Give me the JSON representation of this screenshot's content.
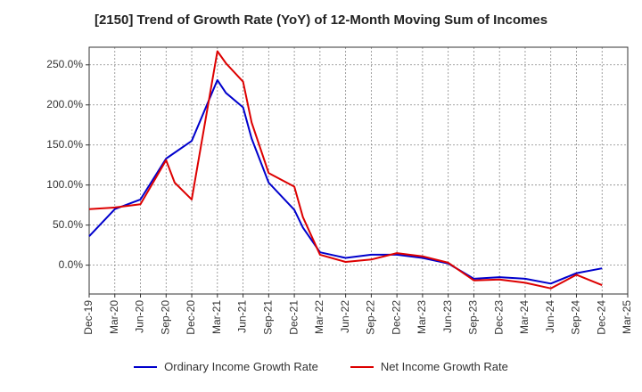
{
  "chart_data": {
    "type": "line",
    "title": "[2150]  Trend of Growth Rate (YoY) of 12-Month Moving Sum of Incomes",
    "xlabel": "",
    "ylabel": "",
    "x_ticks": [
      "Dec-19",
      "Mar-20",
      "Jun-20",
      "Sep-20",
      "Dec-20",
      "Mar-21",
      "Jun-21",
      "Sep-21",
      "Dec-21",
      "Mar-22",
      "Jun-22",
      "Sep-22",
      "Dec-22",
      "Mar-23",
      "Jun-23",
      "Sep-23",
      "Dec-23",
      "Mar-24",
      "Jun-24",
      "Sep-24",
      "Dec-24",
      "Mar-25"
    ],
    "y_ticks": [
      "0.0%",
      "50.0%",
      "100.0%",
      "150.0%",
      "200.0%",
      "250.0%"
    ],
    "y_tick_values": [
      0,
      50,
      100,
      150,
      200,
      250
    ],
    "ylim": [
      -36,
      272
    ],
    "grid": true,
    "legend_position": "bottom",
    "series": [
      {
        "name": "Ordinary Income Growth Rate",
        "color": "#0000cc",
        "points": [
          [
            "Dec-19",
            36
          ],
          [
            "Mar-20",
            70
          ],
          [
            "Jun-20",
            82
          ],
          [
            "Sep-20",
            133
          ],
          [
            "Dec-20",
            155
          ],
          [
            "Mar-21",
            231
          ],
          [
            "Apr-21",
            215
          ],
          [
            "Jun-21",
            197
          ],
          [
            "Jul-21",
            158
          ],
          [
            "Sep-21",
            103
          ],
          [
            "Dec-21",
            69
          ],
          [
            "Jan-22",
            47
          ],
          [
            "Mar-22",
            16
          ],
          [
            "Jun-22",
            9
          ],
          [
            "Sep-22",
            13
          ],
          [
            "Dec-22",
            13
          ],
          [
            "Mar-23",
            9
          ],
          [
            "Jun-23",
            2
          ],
          [
            "Sep-23",
            -17
          ],
          [
            "Dec-23",
            -15
          ],
          [
            "Mar-24",
            -17
          ],
          [
            "Jun-24",
            -23
          ],
          [
            "Sep-24",
            -10
          ],
          [
            "Dec-24",
            -4
          ]
        ]
      },
      {
        "name": "Net Income Growth Rate",
        "color": "#dd0000",
        "points": [
          [
            "Dec-19",
            70
          ],
          [
            "Mar-20",
            72
          ],
          [
            "Jun-20",
            76
          ],
          [
            "Sep-20",
            131
          ],
          [
            "Oct-20",
            103
          ],
          [
            "Dec-20",
            82
          ],
          [
            "Mar-21",
            267
          ],
          [
            "Apr-21",
            252
          ],
          [
            "Jun-21",
            229
          ],
          [
            "Jul-21",
            178
          ],
          [
            "Sep-21",
            115
          ],
          [
            "Dec-21",
            98
          ],
          [
            "Jan-22",
            60
          ],
          [
            "Mar-22",
            13
          ],
          [
            "Jun-22",
            4
          ],
          [
            "Sep-22",
            7
          ],
          [
            "Dec-22",
            15
          ],
          [
            "Mar-23",
            11
          ],
          [
            "Jun-23",
            3
          ],
          [
            "Sep-23",
            -19
          ],
          [
            "Dec-23",
            -18
          ],
          [
            "Mar-24",
            -22
          ],
          [
            "Jun-24",
            -29
          ],
          [
            "Sep-24",
            -12
          ],
          [
            "Dec-24",
            -25
          ]
        ]
      }
    ]
  }
}
